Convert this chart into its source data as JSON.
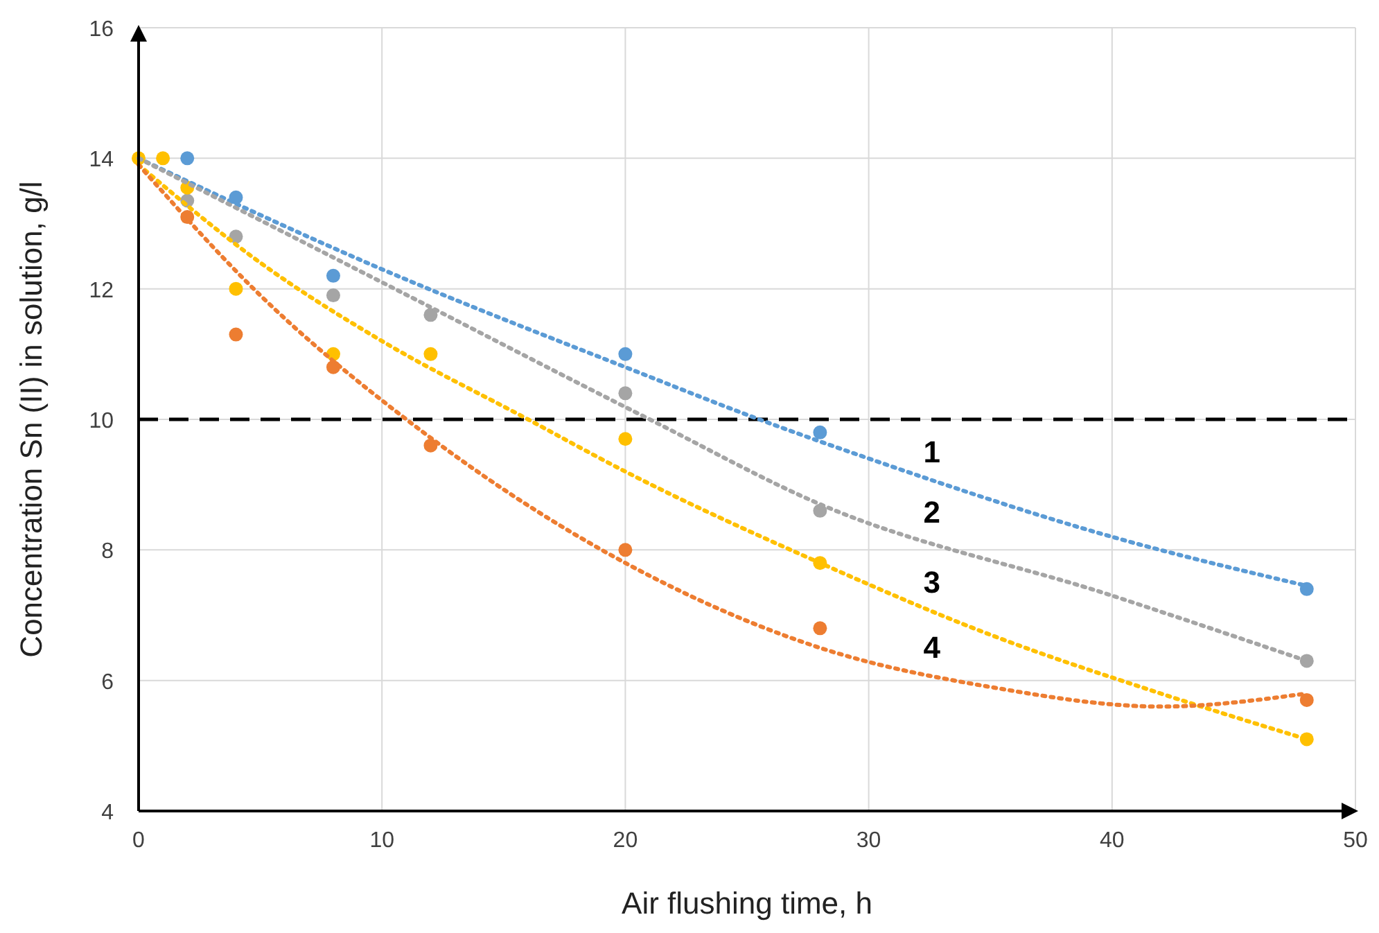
{
  "chart_data": {
    "type": "scatter",
    "xlabel": "Air flushing time, h",
    "ylabel": "Concentration Sn (II) in solution, g/l",
    "xlim": [
      0,
      50
    ],
    "ylim": [
      4,
      16
    ],
    "xticks": [
      0,
      10,
      20,
      30,
      40,
      50
    ],
    "yticks": [
      4,
      6,
      8,
      10,
      12,
      14,
      16
    ],
    "grid": true,
    "marker": "circle",
    "series": [
      {
        "color": "#5b9bd5",
        "x": [
          2,
          4,
          8,
          20,
          28,
          48
        ],
        "values": [
          14,
          13.4,
          12.2,
          11,
          9.8,
          7.4
        ]
      },
      {
        "color": "#a5a5a5",
        "x": [
          2,
          4,
          8,
          12,
          20,
          28,
          48
        ],
        "values": [
          13.35,
          12.8,
          11.9,
          11.6,
          10.4,
          8.6,
          6.3
        ]
      },
      {
        "color": "#ffc000",
        "x": [
          0,
          1,
          2,
          4,
          8,
          12,
          20,
          28,
          48
        ],
        "values": [
          14,
          14,
          13.55,
          12,
          11,
          11,
          9.7,
          7.8,
          5.1
        ]
      },
      {
        "color": "#ed7d31",
        "x": [
          2,
          4,
          8,
          12,
          20,
          28,
          48
        ],
        "values": [
          13.1,
          11.3,
          10.8,
          9.6,
          8,
          6.8,
          5.7
        ]
      },
      {
        "type": "line",
        "name": "1",
        "line_style": "dotted",
        "marker": "none",
        "color": "#5b9bd5",
        "x": [
          0,
          10,
          20,
          25.5,
          30,
          40,
          48
        ],
        "values": [
          14,
          12.3,
          10.8,
          10,
          9.4,
          8.2,
          7.45
        ]
      },
      {
        "type": "line",
        "name": "2",
        "line_style": "dotted",
        "marker": "none",
        "color": "#a5a5a5",
        "x": [
          0,
          10,
          21,
          28,
          40,
          48
        ],
        "values": [
          14,
          12.1,
          10,
          8.7,
          7.3,
          6.3
        ]
      },
      {
        "type": "line",
        "name": "3",
        "line_style": "dotted",
        "marker": "none",
        "color": "#ffc000",
        "x": [
          0,
          5,
          10,
          16,
          20,
          28,
          35,
          42,
          48
        ],
        "values": [
          13.9,
          12.4,
          11.2,
          10,
          9.2,
          7.8,
          6.7,
          5.8,
          5.1
        ]
      },
      {
        "type": "line",
        "name": "4",
        "line_style": "dotted",
        "marker": "none",
        "color": "#ed7d31",
        "x": [
          0,
          5,
          11,
          20,
          28,
          35,
          42,
          48
        ],
        "values": [
          13.9,
          11.9,
          10,
          7.8,
          6.5,
          5.9,
          5.6,
          5.8
        ]
      }
    ],
    "ref_lines": [
      {
        "axis": "y",
        "value": 10,
        "color": "#000000",
        "line_style": "dashed"
      }
    ]
  }
}
